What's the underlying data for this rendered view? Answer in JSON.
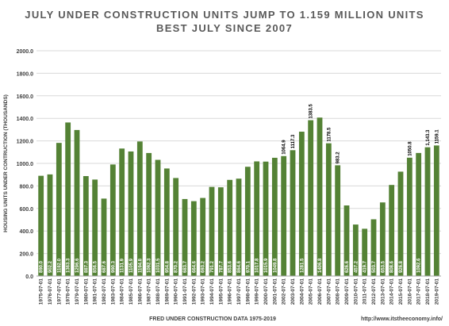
{
  "chart_data": {
    "type": "bar",
    "title_lines": [
      "JULY UNDER CONSTRUCTION UNITS JUMP TO 1.159 MILLION UNITS",
      "BEST JULY SINCE 2007"
    ],
    "xlabel": "FRED UNDER CONSTRUCTION DATA 1975-2019",
    "ylabel": "HOUSING UNITS UNDER CONTRUCTION (THOUSANDS)",
    "source_text": "http://www.itstheeconomy.info/",
    "ylim": [
      0,
      2000
    ],
    "yticks": [
      "0.0",
      "200.0",
      "400.0",
      "600.0",
      "800.0",
      "1000.0",
      "1200.0",
      "1400.0",
      "1600.0",
      "1800.0",
      "2000.0"
    ],
    "grid": true,
    "bar_color": "#548235",
    "categories": [
      "1975-07-01",
      "1976-07-01",
      "1977-07-01",
      "1978-07-01",
      "1979-07-01",
      "1980-07-01",
      "1981-07-01",
      "1982-07-01",
      "1983-07-01",
      "1984-07-01",
      "1985-07-01",
      "1986-07-01",
      "1987-07-01",
      "1988-07-01",
      "1989-07-01",
      "1990-07-01",
      "1991-07-01",
      "1992-07-01",
      "1993-07-01",
      "1994-07-01",
      "1995-07-01",
      "1996-07-01",
      "1997-07-01",
      "1998-07-01",
      "1999-07-01",
      "2000-07-01",
      "2001-07-01",
      "2002-07-01",
      "2003-07-01",
      "2004-07-01",
      "2005-07-01",
      "2006-07-01",
      "2007-07-01",
      "2008-07-01",
      "2009-07-01",
      "2010-07-01",
      "2011-07-01",
      "2012-07-01",
      "2013-07-01",
      "2014-07-01",
      "2015-07-01",
      "2016-07-01",
      "2017-07-01",
      "2018-07-01",
      "2019-07-01"
    ],
    "values": [
      890,
      902.2,
      1182.0,
      1363.3,
      1296.6,
      887.3,
      856.5,
      687.6,
      990.3,
      1131.9,
      1105.9,
      1194.8,
      1092.3,
      1031.5,
      954.8,
      870.2,
      683.7,
      664.6,
      693.2,
      791.2,
      787.7,
      853.6,
      864.6,
      970.1,
      1017.8,
      1015.9,
      1049.8,
      1064.9,
      1117.3,
      1281.5,
      1383.5,
      1406.8,
      1178.5,
      983.2,
      626.6,
      457.2,
      419.7,
      503.7,
      653.5,
      808.6,
      926.8,
      1050.8,
      1092.6,
      1143.3,
      1159.1
    ],
    "data_labels": [
      "890.0",
      "902.2",
      "1182.0",
      "1363.3",
      "1296.6",
      "887.3",
      "856.5",
      "687.6",
      "990.3",
      "1131.9",
      "1105.9",
      "1194.8",
      "1092.3",
      "1031.5",
      "954.8",
      "870.2",
      "683.7",
      "664.6",
      "693.2",
      "791.2",
      "787.7",
      "853.6",
      "864.6",
      "970.1",
      "1017.8",
      "1015.9",
      "1049.8",
      "1064.9",
      "1117.3",
      "1281.5",
      "1383.5",
      "1406.8",
      "1178.5",
      "983.2",
      "626.6",
      "457.2",
      "419.7",
      "503.7",
      "653.5",
      "808.6",
      "926.8",
      "1050.8",
      "1092.6",
      "1,143.3",
      "1159.1"
    ],
    "labels_above": [
      27,
      28,
      30,
      32,
      33,
      41,
      43,
      44
    ]
  }
}
